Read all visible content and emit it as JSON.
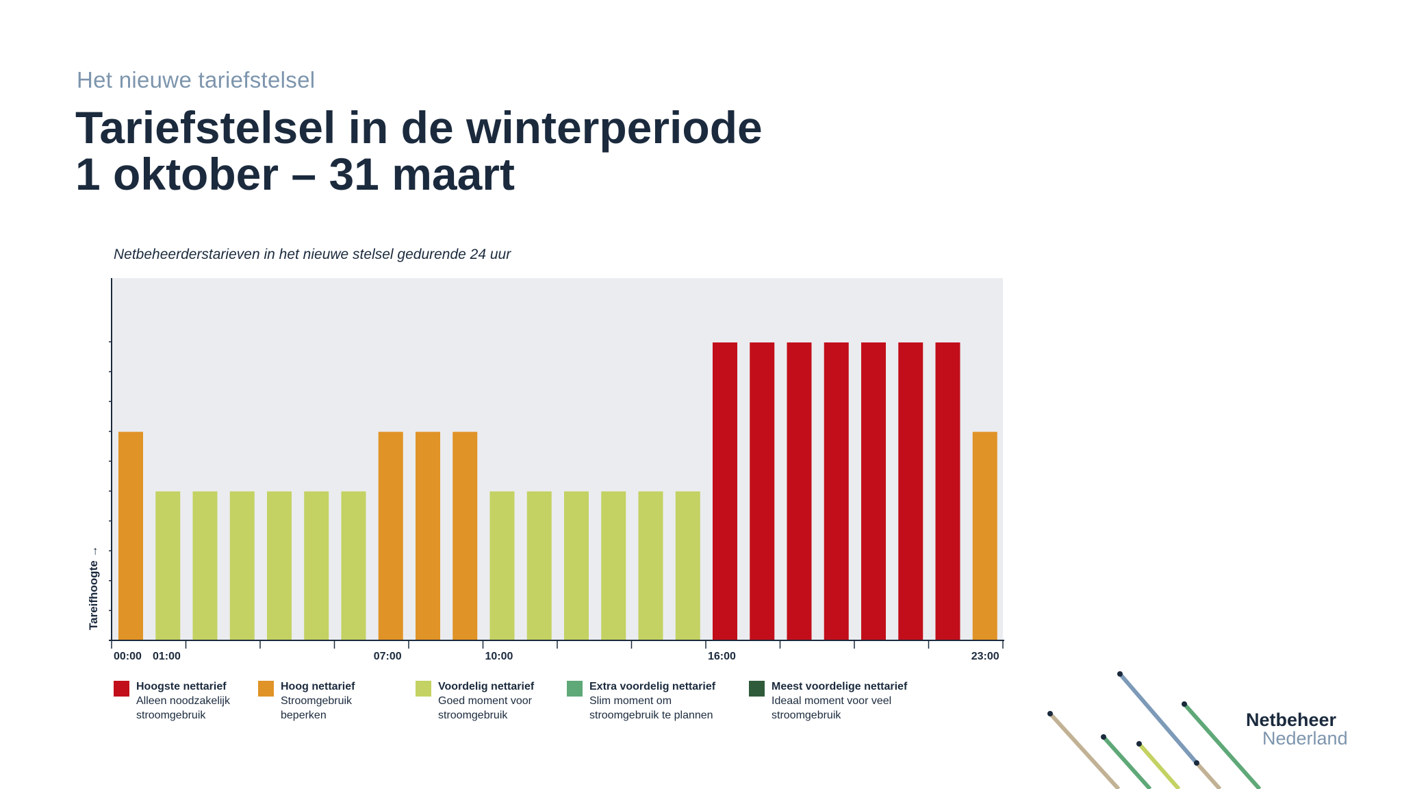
{
  "header": {
    "kicker": "Het nieuwe tariefstelsel",
    "title_line1": "Tariefstelsel in de winterperiode",
    "title_line2": "1 oktober – 31 maart"
  },
  "chart_caption": "Netbeheerderstarieven in het nieuwe stelsel gedurende 24 uur",
  "chart_data": {
    "type": "bar",
    "title": "Netbeheerderstarieven in het nieuwe stelsel gedurende 24 uur",
    "ylabel": "Tareifhoogte →",
    "ylim": [
      0,
      10
    ],
    "grid": false,
    "hours": 24,
    "tick_labels": [
      {
        "hour": 0,
        "label": "00:00"
      },
      {
        "hour": 1,
        "label": "01:00"
      },
      {
        "hour": 7,
        "label": "07:00"
      },
      {
        "hour": 10,
        "label": "10:00"
      },
      {
        "hour": 16,
        "label": "16:00"
      },
      {
        "hour": 23,
        "label": "23:00"
      }
    ],
    "values": [
      7,
      5,
      5,
      5,
      5,
      5,
      5,
      7,
      7,
      7,
      5,
      5,
      5,
      5,
      5,
      5,
      10,
      10,
      10,
      10,
      10,
      10,
      10,
      7
    ],
    "tariff_class": [
      "hoog",
      "voordelig",
      "voordelig",
      "voordelig",
      "voordelig",
      "voordelig",
      "voordelig",
      "hoog",
      "hoog",
      "hoog",
      "voordelig",
      "voordelig",
      "voordelig",
      "voordelig",
      "voordelig",
      "voordelig",
      "hoogste",
      "hoogste",
      "hoogste",
      "hoogste",
      "hoogste",
      "hoogste",
      "hoogste",
      "hoog"
    ],
    "colors": {
      "hoogste": "#c20e1a",
      "hoog": "#e09326",
      "voordelig": "#c3d262",
      "extra": "#5fa878",
      "meest": "#2f5b3a"
    },
    "plot_background": "#ebecef"
  },
  "legend": [
    {
      "key": "hoogste",
      "name": "Hoogste nettarief",
      "desc": "Alleen noodzakelijk\nstroomgebruik"
    },
    {
      "key": "hoog",
      "name": "Hoog nettarief",
      "desc": "Stroomgebruik\nbeperken"
    },
    {
      "key": "voordelig",
      "name": "Voordelig nettarief",
      "desc": "Goed moment voor\nstroomgebruik"
    },
    {
      "key": "extra",
      "name": "Extra voordelig nettarief",
      "desc": "Slim moment om\nstroomgebruik te plannen"
    },
    {
      "key": "meest",
      "name": "Meest voordelige nettarief",
      "desc": "Ideaal moment voor veel\nstroomgebruik"
    }
  ],
  "logo": {
    "line1": "Netbeheer",
    "line2": "Nederland"
  }
}
